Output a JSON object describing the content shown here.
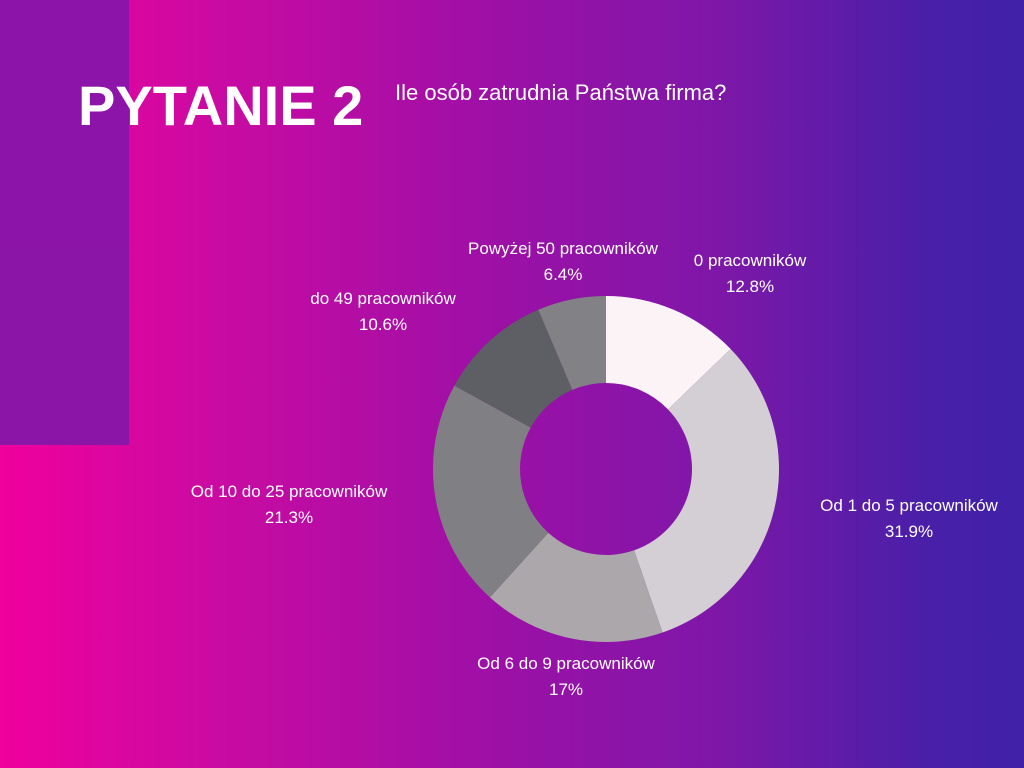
{
  "slide": {
    "title": "PYTANIE 2",
    "question": "Ile osób zatrudnia Państwa firma?"
  },
  "colors": {
    "background_left": "#f0009d",
    "background_right": "#3f21a8",
    "side_panel": "#8a15a7",
    "text": "#ffffff"
  },
  "chart_data": {
    "type": "pie",
    "style": "donut",
    "title": "",
    "categories": [
      "0 pracowników",
      "Od 1 do 5 pracowników",
      "Od 6 do 9 pracowników",
      "Od 10 do 25 pracowników",
      "do 49 pracowników",
      "Powyżej 50 pracowników"
    ],
    "values": [
      12.8,
      31.9,
      17,
      21.3,
      10.6,
      6.4
    ],
    "unit": "%",
    "colors": [
      "#fcf3f6",
      "#d4cfd4",
      "#aba7ab",
      "#807f83",
      "#5e5f64",
      "#828186"
    ],
    "start": "top",
    "direction": "clockwise",
    "legend": "none"
  }
}
